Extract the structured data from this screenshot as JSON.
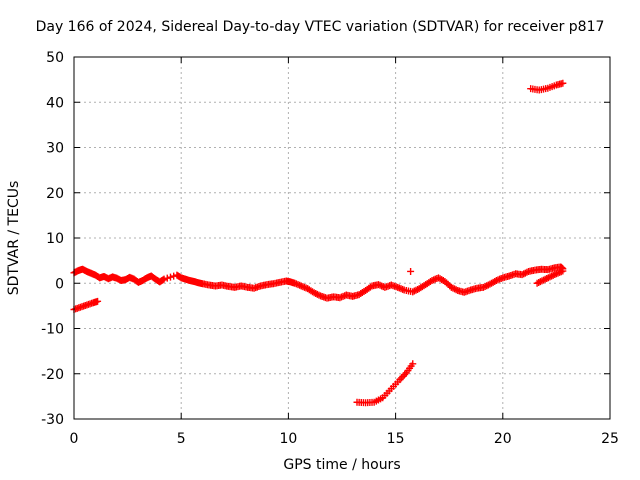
{
  "chart_data": {
    "type": "scatter",
    "title": "Day 166 of 2024, Sidereal Day-to-day VTEC variation (SDTVAR) for receiver p817",
    "xlabel": "GPS time / hours",
    "ylabel": "SDTVAR / TECUs",
    "xlim": [
      0,
      25
    ],
    "ylim": [
      -30,
      50
    ],
    "xticks": [
      0,
      5,
      10,
      15,
      20,
      25
    ],
    "yticks": [
      -30,
      -20,
      -10,
      0,
      10,
      20,
      30,
      40,
      50
    ],
    "grid": true,
    "marker": "+",
    "color": "#ff0000",
    "series": [
      {
        "name": "main-band",
        "points": [
          [
            0.0,
            2.3
          ],
          [
            0.2,
            2.8
          ],
          [
            0.4,
            3.1
          ],
          [
            0.6,
            2.6
          ],
          [
            0.8,
            2.2
          ],
          [
            1.0,
            1.8
          ],
          [
            1.2,
            1.2
          ],
          [
            1.4,
            1.5
          ],
          [
            1.6,
            1.0
          ],
          [
            1.8,
            1.4
          ],
          [
            2.0,
            1.1
          ],
          [
            2.2,
            0.6
          ],
          [
            2.4,
            0.8
          ],
          [
            2.6,
            1.3
          ],
          [
            2.8,
            0.9
          ],
          [
            3.0,
            0.2
          ],
          [
            3.2,
            0.6
          ],
          [
            3.4,
            1.2
          ],
          [
            3.6,
            1.6
          ],
          [
            3.8,
            0.9
          ],
          [
            4.0,
            0.3
          ],
          [
            4.2,
            0.9
          ],
          [
            4.8,
            1.8
          ],
          [
            5.0,
            1.2
          ],
          [
            5.2,
            0.9
          ],
          [
            5.4,
            0.6
          ],
          [
            5.6,
            0.4
          ],
          [
            5.8,
            0.1
          ],
          [
            6.0,
            -0.1
          ],
          [
            6.3,
            -0.4
          ],
          [
            6.6,
            -0.6
          ],
          [
            6.9,
            -0.4
          ],
          [
            7.2,
            -0.7
          ],
          [
            7.5,
            -0.9
          ],
          [
            7.8,
            -0.6
          ],
          [
            8.1,
            -0.9
          ],
          [
            8.4,
            -1.1
          ],
          [
            8.7,
            -0.6
          ],
          [
            9.0,
            -0.3
          ],
          [
            9.3,
            -0.1
          ],
          [
            9.6,
            0.2
          ],
          [
            9.9,
            0.5
          ],
          [
            10.1,
            0.3
          ],
          [
            10.3,
            0.0
          ],
          [
            10.6,
            -0.6
          ],
          [
            10.9,
            -1.2
          ],
          [
            11.2,
            -2.1
          ],
          [
            11.5,
            -2.8
          ],
          [
            11.8,
            -3.3
          ],
          [
            12.1,
            -3.0
          ],
          [
            12.4,
            -3.2
          ],
          [
            12.7,
            -2.6
          ],
          [
            13.0,
            -2.9
          ],
          [
            13.3,
            -2.5
          ],
          [
            13.6,
            -1.6
          ],
          [
            13.9,
            -0.6
          ],
          [
            14.2,
            -0.3
          ],
          [
            14.5,
            -0.9
          ],
          [
            14.8,
            -0.4
          ],
          [
            15.1,
            -0.9
          ],
          [
            15.4,
            -1.5
          ],
          [
            15.8,
            -1.9
          ],
          [
            16.1,
            -1.2
          ],
          [
            16.4,
            -0.3
          ],
          [
            16.7,
            0.6
          ],
          [
            17.0,
            1.2
          ],
          [
            17.3,
            0.4
          ],
          [
            17.6,
            -0.9
          ],
          [
            17.9,
            -1.6
          ],
          [
            18.2,
            -2.0
          ],
          [
            18.5,
            -1.5
          ],
          [
            18.8,
            -1.1
          ],
          [
            19.1,
            -0.9
          ],
          [
            19.4,
            -0.2
          ],
          [
            19.7,
            0.6
          ],
          [
            20.0,
            1.2
          ],
          [
            20.3,
            1.6
          ],
          [
            20.6,
            2.1
          ],
          [
            20.9,
            1.9
          ],
          [
            21.2,
            2.6
          ],
          [
            21.5,
            2.9
          ],
          [
            21.8,
            3.1
          ],
          [
            22.1,
            3.0
          ],
          [
            22.4,
            3.4
          ],
          [
            22.7,
            3.6
          ],
          [
            22.8,
            3.2
          ]
        ]
      },
      {
        "name": "lower-left-segment",
        "points": [
          [
            0.0,
            -5.8
          ],
          [
            0.3,
            -5.3
          ],
          [
            0.6,
            -4.8
          ],
          [
            0.9,
            -4.3
          ],
          [
            1.1,
            -4.0
          ]
        ]
      },
      {
        "name": "lower-descending-segment",
        "points": [
          [
            13.2,
            -26.3
          ],
          [
            13.6,
            -26.4
          ],
          [
            14.0,
            -26.3
          ],
          [
            14.4,
            -25.3
          ],
          [
            14.8,
            -23.3
          ],
          [
            15.2,
            -21.3
          ],
          [
            15.5,
            -19.8
          ],
          [
            15.8,
            -17.8
          ]
        ]
      },
      {
        "name": "upper-segment",
        "points": [
          [
            21.3,
            43.0
          ],
          [
            21.7,
            42.7
          ],
          [
            22.1,
            43.1
          ],
          [
            22.5,
            43.8
          ],
          [
            22.8,
            44.2
          ]
        ]
      },
      {
        "name": "late-rising-segment",
        "points": [
          [
            21.6,
            0.0
          ],
          [
            21.9,
            0.7
          ],
          [
            22.2,
            1.4
          ],
          [
            22.5,
            2.1
          ],
          [
            22.8,
            2.7
          ]
        ]
      },
      {
        "name": "isolated-points",
        "points": [
          [
            15.7,
            2.6
          ]
        ]
      }
    ]
  }
}
